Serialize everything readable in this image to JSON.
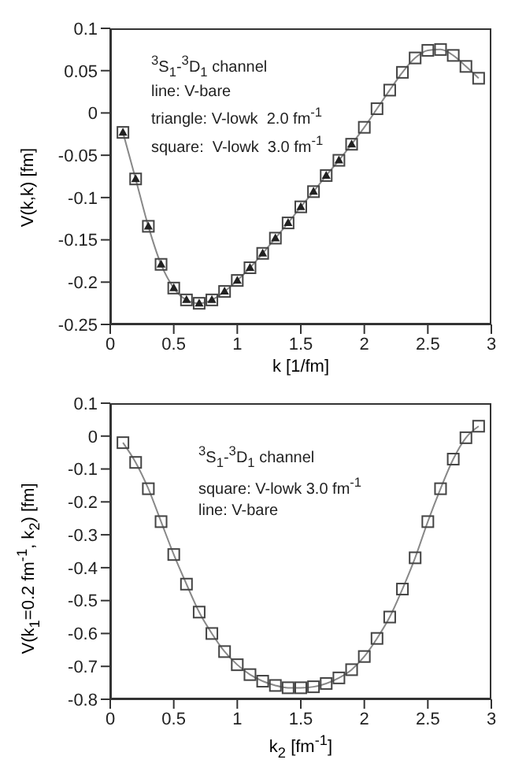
{
  "chart_data": [
    {
      "type": "line",
      "xlabel": "k  [1/fm]",
      "ylabel": "V(k,k)  [fm]",
      "xlim": [
        0,
        3
      ],
      "xticks": [
        0,
        0.5,
        1,
        1.5,
        2,
        2.5,
        3
      ],
      "ylim": [
        -0.25,
        0.1
      ],
      "yticks": [
        -0.25,
        -0.2,
        -0.15,
        -0.1,
        -0.05,
        0,
        0.05,
        0.1
      ],
      "annotations": [
        "$^{3}$S$_{1}$-$^{3}$D$_{1}$ channel",
        "line: V-bare",
        "triangle: V-lowk  2.0 fm$^{-1}$",
        "square:  V-lowk  3.0 fm$^{-1}$"
      ],
      "x": [
        0.1,
        0.2,
        0.3,
        0.4,
        0.5,
        0.6,
        0.7,
        0.8,
        0.9,
        1.0,
        1.1,
        1.2,
        1.3,
        1.4,
        1.5,
        1.6,
        1.7,
        1.8,
        1.9,
        2.0,
        2.1,
        2.2,
        2.3,
        2.4,
        2.5,
        2.6,
        2.7,
        2.8,
        2.9
      ],
      "series": [
        {
          "type": "line",
          "marker": "none",
          "color": "#888888",
          "values": [
            -0.023,
            -0.078,
            -0.134,
            -0.179,
            -0.207,
            -0.221,
            -0.225,
            -0.221,
            -0.211,
            -0.198,
            -0.183,
            -0.166,
            -0.148,
            -0.13,
            -0.111,
            -0.093,
            -0.074,
            -0.056,
            -0.037,
            -0.017,
            0.005,
            0.027,
            0.048,
            0.065,
            0.074,
            0.075,
            0.068,
            0.055,
            0.041
          ]
        },
        {
          "type": "scatter",
          "marker": "triangle",
          "color": "#222222",
          "x": [
            0.1,
            0.2,
            0.3,
            0.4,
            0.5,
            0.6,
            0.7,
            0.8,
            0.9,
            1.0,
            1.1,
            1.2,
            1.3,
            1.4,
            1.5,
            1.6,
            1.7,
            1.8,
            1.9
          ],
          "values": [
            -0.023,
            -0.078,
            -0.134,
            -0.179,
            -0.207,
            -0.221,
            -0.225,
            -0.221,
            -0.211,
            -0.198,
            -0.183,
            -0.166,
            -0.148,
            -0.13,
            -0.111,
            -0.093,
            -0.074,
            -0.056,
            -0.037
          ]
        },
        {
          "type": "scatter",
          "marker": "square",
          "color": "#444444",
          "values": [
            -0.023,
            -0.078,
            -0.134,
            -0.179,
            -0.207,
            -0.221,
            -0.225,
            -0.221,
            -0.211,
            -0.198,
            -0.183,
            -0.166,
            -0.148,
            -0.13,
            -0.111,
            -0.093,
            -0.074,
            -0.056,
            -0.037,
            -0.017,
            0.005,
            0.027,
            0.048,
            0.065,
            0.074,
            0.075,
            0.068,
            0.055,
            0.041
          ]
        }
      ]
    },
    {
      "type": "line",
      "xlabel": "k$_{2}$  [fm$^{-1}$]",
      "ylabel": "V(k$_{1}$=0.2 fm$^{-1}$, k$_{2}$)  [fm]",
      "xlim": [
        0,
        3
      ],
      "xticks": [
        0,
        0.5,
        1,
        1.5,
        2,
        2.5,
        3
      ],
      "ylim": [
        -0.8,
        0.1
      ],
      "yticks": [
        -0.8,
        -0.7,
        -0.6,
        -0.5,
        -0.4,
        -0.3,
        -0.2,
        -0.1,
        0,
        0.1
      ],
      "annotations": [
        "$^{3}$S$_{1}$-$^{3}$D$_{1}$ channel",
        "square: V-lowk 3.0 fm$^{-1}$",
        "line: V-bare"
      ],
      "x": [
        0.1,
        0.2,
        0.3,
        0.4,
        0.5,
        0.6,
        0.7,
        0.8,
        0.9,
        1.0,
        1.1,
        1.2,
        1.3,
        1.4,
        1.5,
        1.6,
        1.7,
        1.8,
        1.9,
        2.0,
        2.1,
        2.2,
        2.3,
        2.4,
        2.5,
        2.6,
        2.7,
        2.8,
        2.9
      ],
      "series": [
        {
          "type": "line",
          "marker": "none",
          "color": "#888888",
          "values": [
            -0.02,
            -0.08,
            -0.16,
            -0.26,
            -0.36,
            -0.45,
            -0.535,
            -0.6,
            -0.655,
            -0.695,
            -0.725,
            -0.745,
            -0.758,
            -0.765,
            -0.765,
            -0.762,
            -0.752,
            -0.735,
            -0.71,
            -0.67,
            -0.615,
            -0.55,
            -0.465,
            -0.37,
            -0.26,
            -0.16,
            -0.07,
            -0.005,
            0.03
          ]
        },
        {
          "type": "scatter",
          "marker": "square",
          "color": "#444444",
          "values": [
            -0.02,
            -0.08,
            -0.16,
            -0.26,
            -0.36,
            -0.45,
            -0.535,
            -0.6,
            -0.655,
            -0.695,
            -0.725,
            -0.745,
            -0.758,
            -0.765,
            -0.765,
            -0.762,
            -0.752,
            -0.735,
            -0.71,
            -0.67,
            -0.615,
            -0.55,
            -0.465,
            -0.37,
            -0.26,
            -0.16,
            -0.07,
            -0.005,
            0.03
          ]
        }
      ]
    }
  ]
}
